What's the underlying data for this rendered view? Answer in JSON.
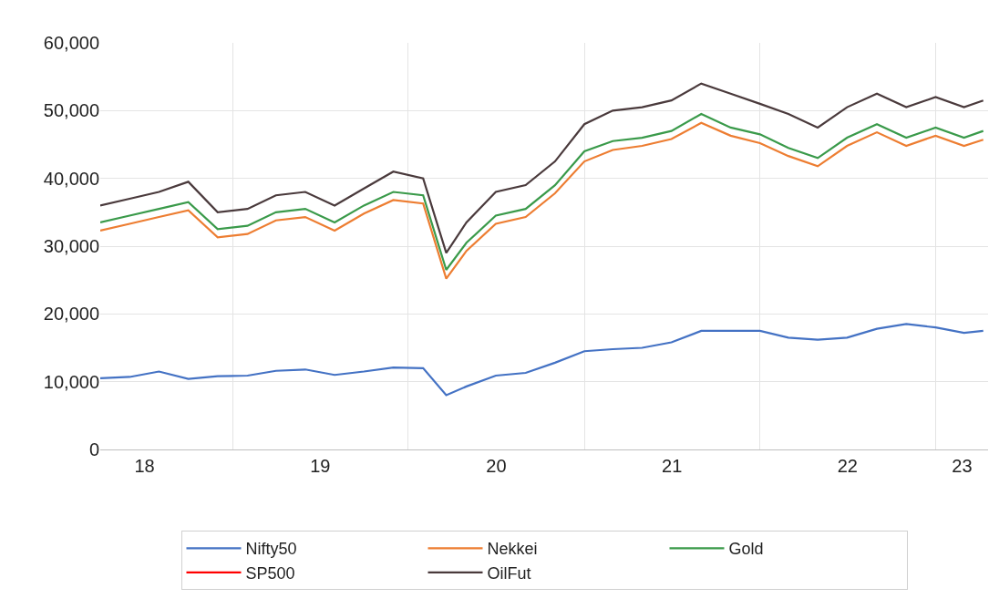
{
  "chart_data": {
    "type": "line",
    "x": [
      "2018-04-01",
      "2018-06-01",
      "2018-08-01",
      "2018-10-01",
      "2018-12-01",
      "2019-02-01",
      "2019-04-01",
      "2019-06-01",
      "2019-08-01",
      "2019-10-01",
      "2019-12-01",
      "2020-02-01",
      "2020-03-20",
      "2020-05-01",
      "2020-07-01",
      "2020-09-01",
      "2020-11-01",
      "2021-01-01",
      "2021-03-01",
      "2021-05-01",
      "2021-07-01",
      "2021-09-01",
      "2021-11-01",
      "2022-01-01",
      "2022-03-01",
      "2022-05-01",
      "2022-07-01",
      "2022-09-01",
      "2022-11-01",
      "2023-01-01",
      "2023-03-01",
      "2023-04-10"
    ],
    "series": [
      {
        "name": "Nifty50",
        "color": "#4472c4",
        "values": [
          10500,
          10700,
          11500,
          10400,
          10800,
          10900,
          11600,
          11800,
          11000,
          11500,
          12100,
          12000,
          8000,
          9300,
          10900,
          11300,
          12800,
          14500,
          14800,
          15000,
          15800,
          17500,
          17500,
          17500,
          16500,
          16200,
          16500,
          17800,
          18500,
          18000,
          17200,
          17500
        ]
      },
      {
        "name": "Nekkei",
        "color": "#ed7d31",
        "values": [
          32300,
          33300,
          34300,
          35300,
          31300,
          31800,
          33800,
          34300,
          32300,
          34800,
          36800,
          36300,
          25200,
          29300,
          33300,
          34300,
          37800,
          42500,
          44200,
          44800,
          45800,
          48200,
          46300,
          45200,
          43300,
          41800,
          44800,
          46800,
          44800,
          46300,
          44800,
          45700
        ]
      },
      {
        "name": "Gold",
        "color": "#3a9a4a",
        "values": [
          33500,
          34500,
          35500,
          36500,
          32500,
          33000,
          35000,
          35500,
          33500,
          36000,
          38000,
          37500,
          26500,
          30500,
          34500,
          35500,
          39000,
          44000,
          45500,
          46000,
          47000,
          49500,
          47500,
          46500,
          44500,
          43000,
          46000,
          48000,
          46000,
          47500,
          46000,
          47000
        ]
      },
      {
        "name": "SP500",
        "color": "#ff0000",
        "values": [
          null,
          null,
          null,
          null,
          null,
          null,
          null,
          null,
          null,
          null,
          null,
          null,
          null,
          null,
          null,
          null,
          null,
          null,
          null,
          null,
          null,
          null,
          null,
          null,
          null,
          null,
          null,
          null,
          null,
          null,
          null,
          null
        ]
      },
      {
        "name": "OilFut",
        "color": "#4a3a3c",
        "values": [
          36000,
          37000,
          38000,
          39500,
          35000,
          35500,
          37500,
          38000,
          36000,
          38500,
          41000,
          40000,
          29000,
          33500,
          38000,
          39000,
          42500,
          48000,
          50000,
          50500,
          51500,
          54000,
          52500,
          51000,
          49500,
          47500,
          50500,
          52500,
          50500,
          52000,
          50500,
          51500
        ]
      }
    ],
    "xlim": [
      "2018-04-01",
      "2023-04-20"
    ],
    "xticks": [
      {
        "value": "2018-07-02",
        "label": "18"
      },
      {
        "value": "2019-01-01",
        "label": null
      },
      {
        "value": "2019-07-02",
        "label": "19"
      },
      {
        "value": "2020-01-01",
        "label": null
      },
      {
        "value": "2020-07-02",
        "label": "20"
      },
      {
        "value": "2021-01-01",
        "label": null
      },
      {
        "value": "2021-07-02",
        "label": "21"
      },
      {
        "value": "2022-01-01",
        "label": null
      },
      {
        "value": "2022-07-02",
        "label": "22"
      },
      {
        "value": "2023-01-01",
        "label": null
      },
      {
        "value": "2023-02-25",
        "label": "23"
      }
    ],
    "ylim": [
      0,
      60000
    ],
    "yticks": [
      {
        "value": 0,
        "label": "0"
      },
      {
        "value": 10000,
        "label": "10,000"
      },
      {
        "value": 20000,
        "label": "20,000"
      },
      {
        "value": 30000,
        "label": "30,000"
      },
      {
        "value": 40000,
        "label": "40,000"
      },
      {
        "value": 50000,
        "label": "50,000"
      },
      {
        "value": 60000,
        "label": "60,000"
      }
    ],
    "grid": true,
    "legend": "bottom",
    "marker": "none",
    "line_style": "solid"
  }
}
